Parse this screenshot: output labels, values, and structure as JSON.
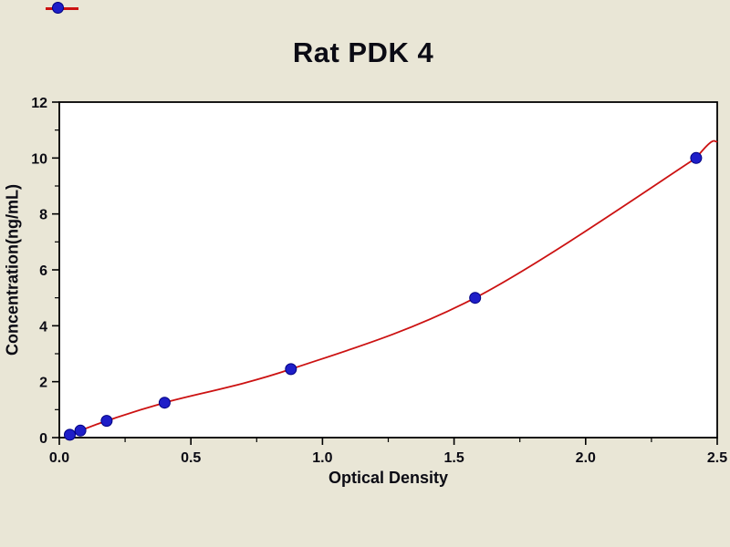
{
  "chart_data": {
    "type": "scatter",
    "title": "Rat PDK 4",
    "xlabel": "Optical Density",
    "ylabel": "Concentration(ng/mL)",
    "xlim": [
      0.0,
      2.5
    ],
    "ylim": [
      0,
      12
    ],
    "x_major_ticks": [
      0.0,
      0.5,
      1.0,
      1.5,
      2.0,
      2.5
    ],
    "x_tick_labels": [
      "0.0",
      "0.5",
      "1.0",
      "1.5",
      "2.0",
      "2.5"
    ],
    "x_minor_ticks": [
      0.25,
      0.75,
      1.25,
      1.75,
      2.25
    ],
    "y_major_ticks": [
      0,
      2,
      4,
      6,
      8,
      10,
      12
    ],
    "y_tick_labels": [
      "0",
      "2",
      "4",
      "6",
      "8",
      "10",
      "12"
    ],
    "y_minor_ticks": [
      1,
      3,
      5,
      7,
      9,
      11
    ],
    "grid": false,
    "legend": "none",
    "series": [
      {
        "name": "standard-points",
        "marker": "circle",
        "color": "#1e1ec8",
        "edge_color": "#000080",
        "points": [
          {
            "x": 0.04,
            "y": 0.1
          },
          {
            "x": 0.08,
            "y": 0.25
          },
          {
            "x": 0.18,
            "y": 0.6
          },
          {
            "x": 0.4,
            "y": 1.25
          },
          {
            "x": 0.88,
            "y": 2.45
          },
          {
            "x": 1.58,
            "y": 5.0
          },
          {
            "x": 2.42,
            "y": 10.0
          }
        ]
      }
    ],
    "fit_curve": {
      "name": "fitted-standard-curve",
      "color": "#cc1212",
      "start": {
        "x": 0.02,
        "y": 0.04
      },
      "end": {
        "x": 2.5,
        "y": 10.6
      }
    },
    "plot_bg": "#ffffff",
    "page_bg": "#e9e6d6",
    "axis_color": "#000000",
    "text_color": "#0b0b14"
  }
}
